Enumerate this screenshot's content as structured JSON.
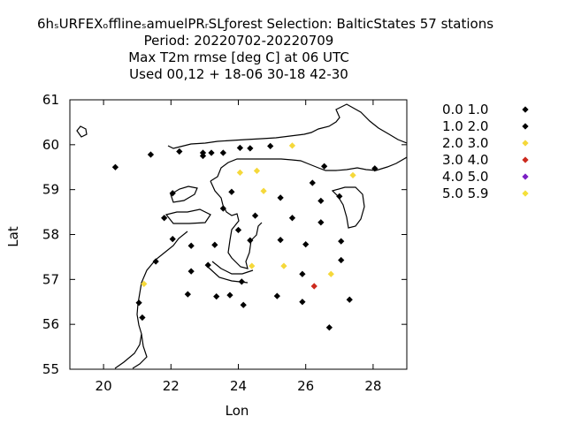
{
  "chart_data": {
    "type": "scatter",
    "title_lines": [
      "6hₛURFEXₒfflineₛamuelPRᵣSLƒorest   Selection: BalticStates     57 stations",
      "Period: 20220702-20220709",
      "Max T2m rmse [deg C] at  06 UTC",
      "Used  00,12  + 18-06 30-18 42-30"
    ],
    "xlabel": "Lon",
    "ylabel": "Lat",
    "xlim": [
      19,
      29
    ],
    "ylim": [
      55,
      61
    ],
    "x_ticks": [
      "20",
      "22",
      "24",
      "26",
      "28"
    ],
    "y_ticks": [
      "55",
      "56",
      "57",
      "58",
      "59",
      "60",
      "61"
    ],
    "grid": false,
    "legend_position": "right",
    "legend": [
      {
        "label": "0.0 1.0",
        "color": "#000000"
      },
      {
        "label": "1.0 2.0",
        "color": "#000000"
      },
      {
        "label": "2.0 3.0",
        "color": "#f5d83a"
      },
      {
        "label": "3.0 4.0",
        "color": "#cc2a1e"
      },
      {
        "label": "4.0 5.0",
        "color": "#7b1fc4"
      },
      {
        "label": "5.0 5.9",
        "color": "#f5e03a"
      }
    ],
    "series": [
      {
        "class": "0.0 1.0",
        "points": []
      },
      {
        "class": "1.0 2.0",
        "points": [
          [
            20.35,
            59.5
          ],
          [
            21.4,
            59.78
          ],
          [
            22.25,
            59.85
          ],
          [
            22.95,
            59.75
          ],
          [
            22.95,
            59.82
          ],
          [
            23.2,
            59.82
          ],
          [
            23.55,
            59.82
          ],
          [
            24.05,
            59.93
          ],
          [
            24.35,
            59.92
          ],
          [
            24.95,
            59.97
          ],
          [
            26.55,
            59.52
          ],
          [
            28.05,
            59.47
          ],
          [
            22.05,
            58.92
          ],
          [
            23.8,
            58.95
          ],
          [
            25.25,
            58.82
          ],
          [
            26.2,
            59.15
          ],
          [
            27.0,
            58.85
          ],
          [
            21.8,
            58.37
          ],
          [
            23.55,
            58.58
          ],
          [
            24.5,
            58.42
          ],
          [
            25.6,
            58.37
          ],
          [
            26.45,
            58.75
          ],
          [
            26.45,
            58.27
          ],
          [
            24.0,
            58.1
          ],
          [
            22.05,
            57.9
          ],
          [
            23.3,
            57.77
          ],
          [
            24.35,
            57.87
          ],
          [
            25.25,
            57.88
          ],
          [
            26.0,
            57.78
          ],
          [
            27.05,
            57.85
          ],
          [
            22.6,
            57.75
          ],
          [
            21.55,
            57.4
          ],
          [
            23.1,
            57.32
          ],
          [
            25.9,
            57.12
          ],
          [
            27.05,
            57.43
          ],
          [
            22.6,
            57.18
          ],
          [
            24.1,
            56.95
          ],
          [
            22.5,
            56.67
          ],
          [
            23.35,
            56.62
          ],
          [
            23.75,
            56.65
          ],
          [
            24.15,
            56.43
          ],
          [
            25.15,
            56.63
          ],
          [
            25.9,
            56.5
          ],
          [
            27.3,
            56.55
          ],
          [
            21.05,
            56.48
          ],
          [
            21.15,
            56.15
          ],
          [
            26.7,
            55.93
          ]
        ]
      },
      {
        "class": "2.0 3.0",
        "points": [
          [
            25.6,
            59.98
          ],
          [
            24.05,
            59.38
          ],
          [
            24.55,
            59.42
          ],
          [
            27.4,
            59.32
          ],
          [
            24.75,
            58.97
          ],
          [
            24.4,
            57.3
          ],
          [
            25.35,
            57.3
          ],
          [
            26.75,
            57.12
          ],
          [
            21.2,
            56.9
          ]
        ]
      },
      {
        "class": "3.0 4.0",
        "points": [
          [
            26.25,
            56.85
          ]
        ]
      },
      {
        "class": "4.0 5.0",
        "points": []
      },
      {
        "class": "5.0 5.9",
        "points": []
      }
    ]
  }
}
